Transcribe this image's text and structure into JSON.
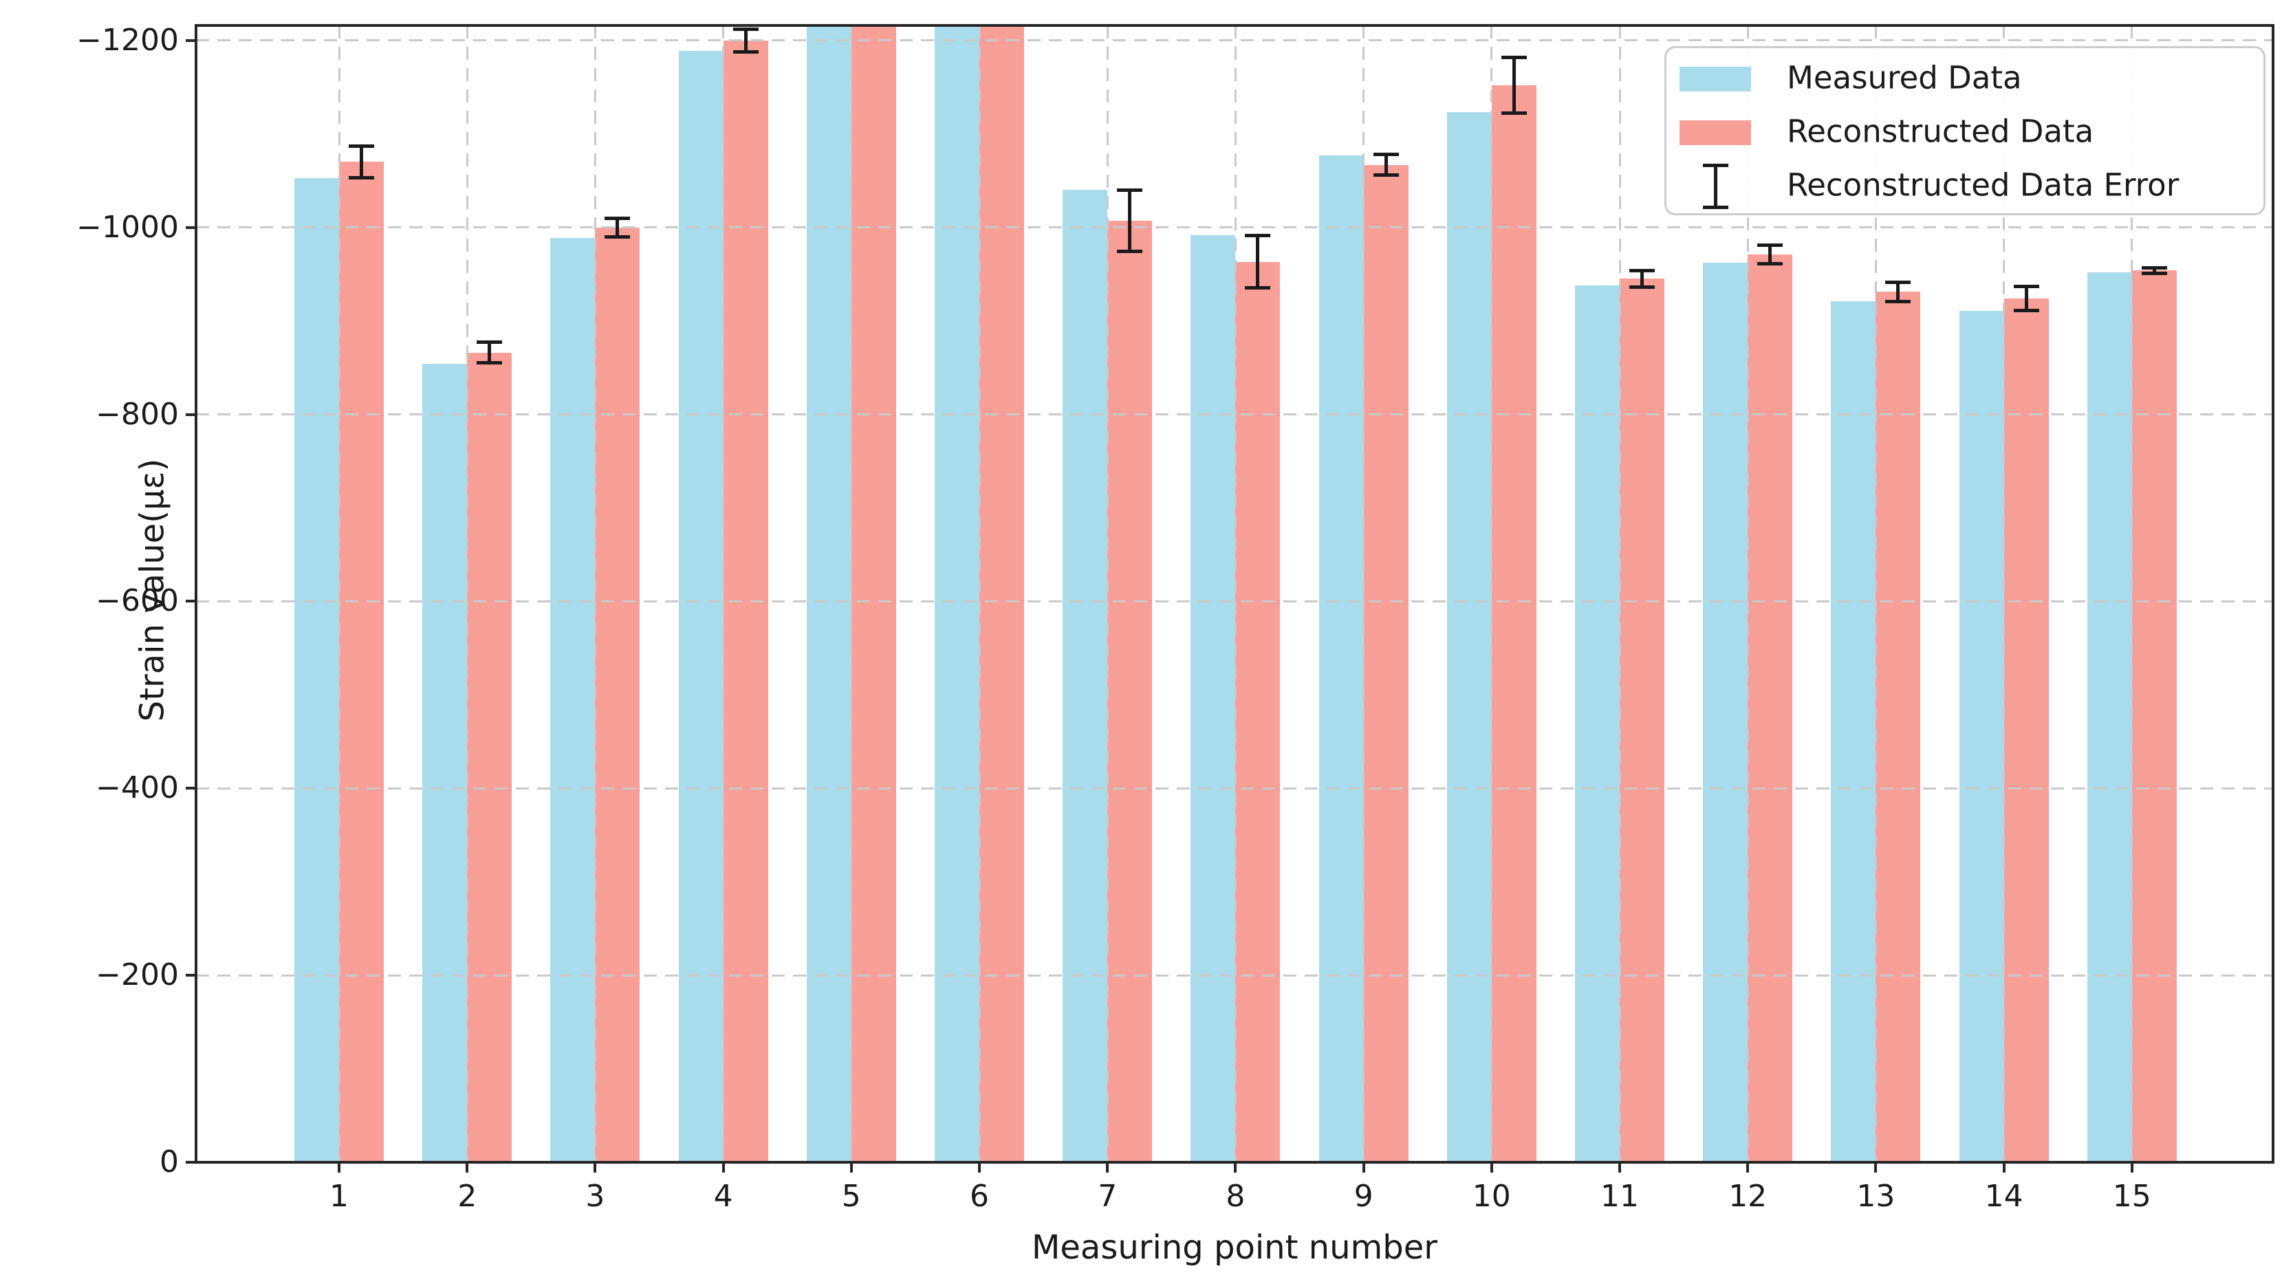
{
  "axes": {
    "xlabel": "Measuring point number",
    "ylabel": "Strain value(με)",
    "xtick_labels": [
      "1",
      "2",
      "3",
      "4",
      "5",
      "6",
      "7",
      "8",
      "9",
      "10",
      "11",
      "12",
      "13",
      "14",
      "15"
    ],
    "ytick_labels": [
      "0",
      "−200",
      "−400",
      "−600",
      "−800",
      "−1000",
      "−1200"
    ],
    "ytick_values": [
      0,
      -200,
      -400,
      -600,
      -800,
      -1000,
      -1200
    ]
  },
  "legend": {
    "items": [
      {
        "label": "Measured Data",
        "swatch": "measured"
      },
      {
        "label": "Reconstructed Data",
        "swatch": "reconstructed"
      },
      {
        "label": "Reconstructed Data Error",
        "swatch": "errorbar"
      }
    ]
  },
  "colors": {
    "measured": "#a8dcec",
    "reconstructed": "#f89f98",
    "errorbar": "#1a1a1a",
    "grid": "#c9c9c9",
    "spine": "#262626",
    "text": "#1a1a1a",
    "background": "#ffffff"
  },
  "chart_data": {
    "type": "bar",
    "title": "",
    "xlabel": "Measuring point number",
    "ylabel": "Strain value(με)",
    "categories": [
      1,
      2,
      3,
      4,
      5,
      6,
      7,
      8,
      9,
      10,
      11,
      12,
      13,
      14,
      15
    ],
    "series": [
      {
        "name": "Measured Data",
        "color": "#a8dcec",
        "values": [
          -1053,
          -854,
          -989,
          -1189,
          -1216,
          -1216,
          -1040,
          -992,
          -1077,
          -1123,
          -938,
          -962,
          -921,
          -911,
          -952
        ]
      },
      {
        "name": "Reconstructed Data",
        "color": "#f89f98",
        "values": [
          -1070,
          -866,
          -1000,
          -1200,
          -1216,
          -1216,
          -1007,
          -963,
          -1067,
          -1152,
          -945,
          -971,
          -931,
          -924,
          -954
        ],
        "errors": [
          17,
          11,
          10,
          12,
          null,
          null,
          33,
          28,
          11,
          30,
          9,
          10,
          10,
          13,
          3
        ]
      }
    ],
    "clipped_at_axis_top": [
      5,
      6
    ],
    "ylim": [
      0,
      -1216
    ],
    "yticks": [
      0,
      -200,
      -400,
      -600,
      -800,
      -1000,
      -1200
    ],
    "grid": "dashed, both axes, light gray, drawn over bars",
    "legend_position": "upper right",
    "axis_inverted": true
  }
}
